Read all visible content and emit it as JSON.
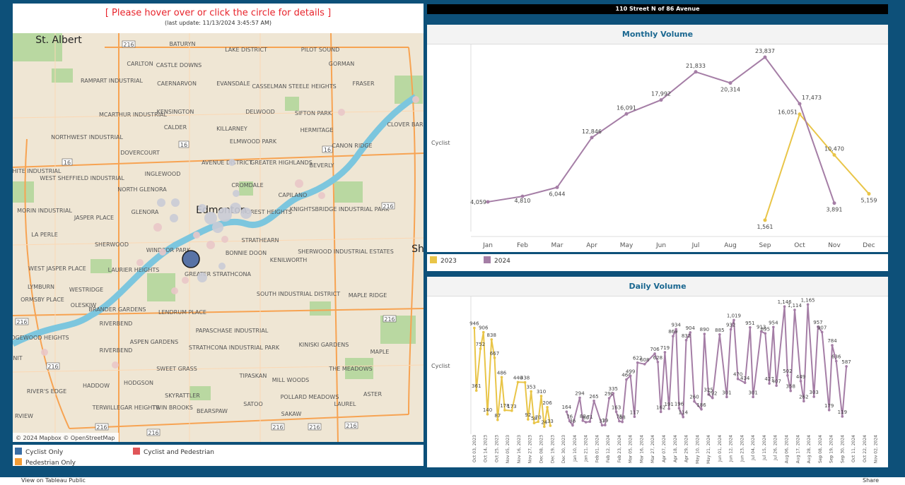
{
  "map": {
    "instruction": "[ Please hover over or click the circle for details ]",
    "last_update": "(last update: 11/13/2024 3:45:57 AM)",
    "attribution": "© 2024 Mapbox  © OpenStreetMap",
    "city_labels": {
      "st_albert": "St. Albert",
      "edmonton": "Edmonton",
      "sherwood_park_partial": "Sh",
      "riverview_partial": "RVIEW",
      "nit_partial": "NIT"
    },
    "neighbourhoods": {
      "baturyn": "BATURYN",
      "lake_district": "LAKE DISTRICT",
      "pilot_sound": "PILOT SOUND",
      "carlton": "CARLTON",
      "castle_downs": "CASTLE DOWNS",
      "gorman": "GORMAN",
      "rampart_industrial": "RAMPART INDUSTRIAL",
      "caernarvon": "CAERNARVON",
      "evansdale": "EVANSDALE",
      "casselman_steele_heights": "CASSELMAN STEELE HEIGHTS",
      "fraser": "FRASER",
      "mcarthur_industrial": "MCARTHUR INDUSTRIAL",
      "kensington": "KENSINGTON",
      "delwood": "DELWOOD",
      "sifton_park": "SIFTON PARK",
      "calder": "CALDER",
      "killarney": "KILLARNEY",
      "hermitage": "HERMITAGE",
      "clover_bar": "CLOVER BAR",
      "northwest_industrial": "NORTHWEST INDUSTRIAL",
      "elmwood_park": "ELMWOOD PARK",
      "canon_ridge": "CANON RIDGE",
      "dovercourt": "DOVERCOURT",
      "avenue_district": "AVENUE DISTRICT",
      "greater_highlands": "GREATER HIGHLANDS",
      "beverly": "BEVERLY",
      "white_industrial": "WHITE INDUSTRIAL",
      "west_sheffield_industrial": "WEST SHEFFIELD INDUSTRIAL",
      "inglewood": "INGLEWOOD",
      "cromdale": "CROMDALE",
      "north_glenora": "NORTH GLENORA",
      "capilano": "CAPILANO",
      "morin_industrial": "MORIN INDUSTRIAL",
      "jasper_place": "JASPER PLACE",
      "glenora": "GLENORA",
      "forest_heights": "FOREST HEIGHTS",
      "knightsbridge_industrial_park": "KNIGHTSBRIDGE INDUSTRIAL PARK",
      "la_perle": "LA PERLE",
      "sherwood": "SHERWOOD",
      "strathearn": "STRATHEARN",
      "windsor_park": "WINDSOR PARK",
      "bonnie_doon": "BONNIE DOON",
      "sherwood_industrial_estates": "SHERWOOD INDUSTRIAL ESTATES",
      "west_jasper_place": "WEST JASPER PLACE",
      "laurier_heights": "LAURIER HEIGHTS",
      "greater_strathcona": "GREATER STRATHCONA",
      "kenilworth": "KENILWORTH",
      "lymburn": "LYMBURN",
      "westridge": "WESTRIDGE",
      "south_industrial_district": "SOUTH INDUSTRIAL DISTRICT",
      "maple_ridge": "MAPLE RIDGE",
      "ormsby_place": "ORMSBY PLACE",
      "oleskiw": "OLESKIW",
      "brander_gardens": "BRANDER GARDENS",
      "lendrum_place": "LENDRUM PLACE",
      "riverbend": "RIVERBEND",
      "wedgewood_heights": "WEDGEWOOD HEIGHTS",
      "aspen_gardens": "ASPEN GARDENS",
      "papaschase_industrial": "PAPASCHASE INDUSTRIAL",
      "strathcona_industrial_park": "STRATHCONA INDUSTRIAL PARK",
      "kiniski_gardens": "KINISKI GARDENS",
      "maple": "MAPLE",
      "sweet_grass": "SWEET GRASS",
      "the_meadows": "THE MEADOWS",
      "haddow": "HADDOW",
      "hodgson": "HODGSON",
      "tipaskan": "TIPASKAN",
      "mill_woods": "MILL WOODS",
      "rivers_edge": "RIVER'S EDGE",
      "skyrattler": "SKYRATTLER",
      "pollard_meadows": "POLLARD MEADOWS",
      "aster": "ASTER",
      "terwillegar_heights": "TERWILLEGAR HEIGHTS",
      "twin_brooks": "TWIN BROOKS",
      "bearspaw": "BEARSPAW",
      "satoo": "SATOO",
      "laurel": "LAUREL",
      "sakaw": "SAKAW"
    },
    "highway_shield": "216",
    "highway_16": "16"
  },
  "legend": {
    "cyclist_only": "Cyclist Only",
    "cyclist_and_pedestrian": "Cyclist and Pedestrian",
    "pedestrian_only": "Pedestrian Only",
    "colors": {
      "cyclist_only": "#3a6ea5",
      "cyclist_and_pedestrian": "#e05558",
      "pedestrian_only": "#f39c34"
    }
  },
  "location_title": "110 Street N of 86 Avenue",
  "monthly": {
    "title": "Monthly Volume",
    "row_label": "Cyclist",
    "year_legend": [
      {
        "label": "2023",
        "color": "#e9c548"
      },
      {
        "label": "2024",
        "color": "#a57ea6"
      }
    ]
  },
  "daily": {
    "title": "Daily Volume",
    "row_label": "Cyclist"
  },
  "chart_data": [
    {
      "type": "line",
      "title": "Monthly Volume",
      "ylabel": "Cyclist",
      "categories": [
        "Jan",
        "Feb",
        "Mar",
        "Apr",
        "May",
        "Jun",
        "Jul",
        "Aug",
        "Sep",
        "Oct",
        "Nov",
        "Dec"
      ],
      "ylim": [
        0,
        25000
      ],
      "series": [
        {
          "name": "2023",
          "color": "#e9c548",
          "values": [
            null,
            null,
            null,
            null,
            null,
            null,
            null,
            null,
            1561,
            16051,
            10470,
            5159
          ]
        },
        {
          "name": "2024",
          "color": "#a57ea6",
          "values": [
            4059,
            4810,
            6044,
            12846,
            16091,
            17992,
            21833,
            20314,
            23837,
            17473,
            3891,
            null
          ]
        }
      ]
    },
    {
      "type": "line",
      "title": "Daily Volume",
      "ylabel": "Cyclist",
      "ylim": [
        0,
        1200
      ],
      "x_tick_labels": [
        "Oct 03, 2023",
        "Oct 14, 2023",
        "Oct 25, 2023",
        "Nov 05, 2023",
        "Nov 16, 2023",
        "Nov 27, 2023",
        "Dec 08, 2023",
        "Dec 19, 2023",
        "Dec 30, 2023",
        "Jan 10, 2024",
        "Jan 21, 2024",
        "Feb 01, 2024",
        "Feb 12, 2024",
        "Feb 23, 2024",
        "Mar 05, 2024",
        "Mar 16, 2024",
        "Mar 27, 2024",
        "Apr 07, 2024",
        "Apr 18, 2024",
        "Apr 29, 2024",
        "May 10, 2024",
        "May 21, 2024",
        "Jun 01, 2024",
        "Jun 12, 2024",
        "Jun 23, 2024",
        "Jul 04, 2024",
        "Jul 15, 2024",
        "Jul 26, 2024",
        "Aug 06, 2024",
        "Aug 17, 2024",
        "Aug 28, 2024",
        "Sep 08, 2024",
        "Sep 19, 2024",
        "Sep 30, 2024",
        "Oct 11, 2024",
        "Oct 22, 2024",
        "Nov 02, 2024"
      ],
      "series": [
        {
          "name": "2023",
          "color": "#e9c548",
          "labeled_points": [
            {
              "x": "Oct 03, 2023",
              "y": 946
            },
            {
              "x": "Oct 05, 2023",
              "y": 361
            },
            {
              "x": "Oct 09, 2023",
              "y": 752
            },
            {
              "x": "Oct 12, 2023",
              "y": 906
            },
            {
              "x": "Oct 16, 2023",
              "y": 140
            },
            {
              "x": "Oct 20, 2023",
              "y": 838
            },
            {
              "x": "Oct 23, 2023",
              "y": 667
            },
            {
              "x": "Oct 26, 2023",
              "y": 87
            },
            {
              "x": "Oct 30, 2023",
              "y": 486
            },
            {
              "x": "Nov 02, 2023",
              "y": 178
            },
            {
              "x": "Nov 09, 2023",
              "y": 173
            },
            {
              "x": "Nov 15, 2023",
              "y": 440
            },
            {
              "x": "Nov 22, 2023",
              "y": 438
            },
            {
              "x": "Nov 25, 2023",
              "y": 92
            },
            {
              "x": "Nov 28, 2023",
              "y": 353
            },
            {
              "x": "Dec 01, 2023",
              "y": 58
            },
            {
              "x": "Dec 05, 2023",
              "y": 70
            },
            {
              "x": "Dec 08, 2023",
              "y": 310
            },
            {
              "x": "Dec 11, 2023",
              "y": 24
            },
            {
              "x": "Dec 14, 2023",
              "y": 206
            },
            {
              "x": "Dec 17, 2023",
              "y": 33
            }
          ]
        },
        {
          "name": "2024",
          "color": "#a57ea6",
          "labeled_points": [
            {
              "x": "Jan 02, 2024",
              "y": 164
            },
            {
              "x": "Jan 05, 2024",
              "y": 76
            },
            {
              "x": "Jan 08, 2024",
              "y": 36
            },
            {
              "x": "Jan 15, 2024",
              "y": 294
            },
            {
              "x": "Jan 18, 2024",
              "y": 80
            },
            {
              "x": "Jan 21, 2024",
              "y": 66
            },
            {
              "x": "Jan 25, 2024",
              "y": 71
            },
            {
              "x": "Jan 29, 2024",
              "y": 265
            },
            {
              "x": "Feb 06, 2024",
              "y": 37
            },
            {
              "x": "Feb 09, 2024",
              "y": 39
            },
            {
              "x": "Feb 13, 2024",
              "y": 290
            },
            {
              "x": "Feb 17, 2024",
              "y": 335
            },
            {
              "x": "Feb 20, 2024",
              "y": 163
            },
            {
              "x": "Feb 23, 2024",
              "y": 75
            },
            {
              "x": "Feb 26, 2024",
              "y": 68
            },
            {
              "x": "Mar 01, 2024",
              "y": 464
            },
            {
              "x": "Mar 05, 2024",
              "y": 499
            },
            {
              "x": "Mar 09, 2024",
              "y": 117
            },
            {
              "x": "Mar 12, 2024",
              "y": 622
            },
            {
              "x": "Mar 19, 2024",
              "y": 608
            },
            {
              "x": "Mar 29, 2024",
              "y": 706
            },
            {
              "x": "Apr 01, 2024",
              "y": 628
            },
            {
              "x": "Apr 04, 2024",
              "y": 162
            },
            {
              "x": "Apr 08, 2024",
              "y": 719
            },
            {
              "x": "Apr 12, 2024",
              "y": 191
            },
            {
              "x": "Apr 16, 2024",
              "y": 869
            },
            {
              "x": "Apr 19, 2024",
              "y": 934
            },
            {
              "x": "Apr 22, 2024",
              "y": 196
            },
            {
              "x": "Apr 26, 2024",
              "y": 114
            },
            {
              "x": "Apr 29, 2024",
              "y": 832
            },
            {
              "x": "May 03, 2024",
              "y": 904
            },
            {
              "x": "May 07, 2024",
              "y": 260
            },
            {
              "x": "May 14, 2024",
              "y": 186
            },
            {
              "x": "May 17, 2024",
              "y": 890
            },
            {
              "x": "May 21, 2024",
              "y": 325
            },
            {
              "x": "May 25, 2024",
              "y": 292
            },
            {
              "x": "Jun 01, 2024",
              "y": 885
            },
            {
              "x": "Jun 08, 2024",
              "y": 301
            },
            {
              "x": "Jun 12, 2024",
              "y": 932
            },
            {
              "x": "Jun 15, 2024",
              "y": 1019
            },
            {
              "x": "Jun 19, 2024",
              "y": 470
            },
            {
              "x": "Jun 26, 2024",
              "y": 434
            },
            {
              "x": "Jul 01, 2024",
              "y": 951
            },
            {
              "x": "Jul 04, 2024",
              "y": 301
            },
            {
              "x": "Jul 12, 2024",
              "y": 913
            },
            {
              "x": "Jul 16, 2024",
              "y": 895
            },
            {
              "x": "Jul 20, 2024",
              "y": 427
            },
            {
              "x": "Jul 24, 2024",
              "y": 954
            },
            {
              "x": "Jul 27, 2024",
              "y": 407
            },
            {
              "x": "Aug 04, 2024",
              "y": 1146
            },
            {
              "x": "Aug 07, 2024",
              "y": 502
            },
            {
              "x": "Aug 10, 2024",
              "y": 358
            },
            {
              "x": "Aug 14, 2024",
              "y": 1114
            },
            {
              "x": "Aug 20, 2024",
              "y": 449
            },
            {
              "x": "Aug 23, 2024",
              "y": 262
            },
            {
              "x": "Aug 27, 2024",
              "y": 1165
            },
            {
              "x": "Sep 02, 2024",
              "y": 303
            },
            {
              "x": "Sep 06, 2024",
              "y": 957
            },
            {
              "x": "Sep 10, 2024",
              "y": 907
            },
            {
              "x": "Sep 17, 2024",
              "y": 179
            },
            {
              "x": "Sep 20, 2024",
              "y": 784
            },
            {
              "x": "Sep 24, 2024",
              "y": 636
            },
            {
              "x": "Sep 30, 2024",
              "y": 119
            },
            {
              "x": "Oct 04, 2024",
              "y": 587
            }
          ]
        }
      ]
    }
  ],
  "footer": {
    "view_on_tableau": "View on Tableau Public",
    "share": "Share"
  }
}
